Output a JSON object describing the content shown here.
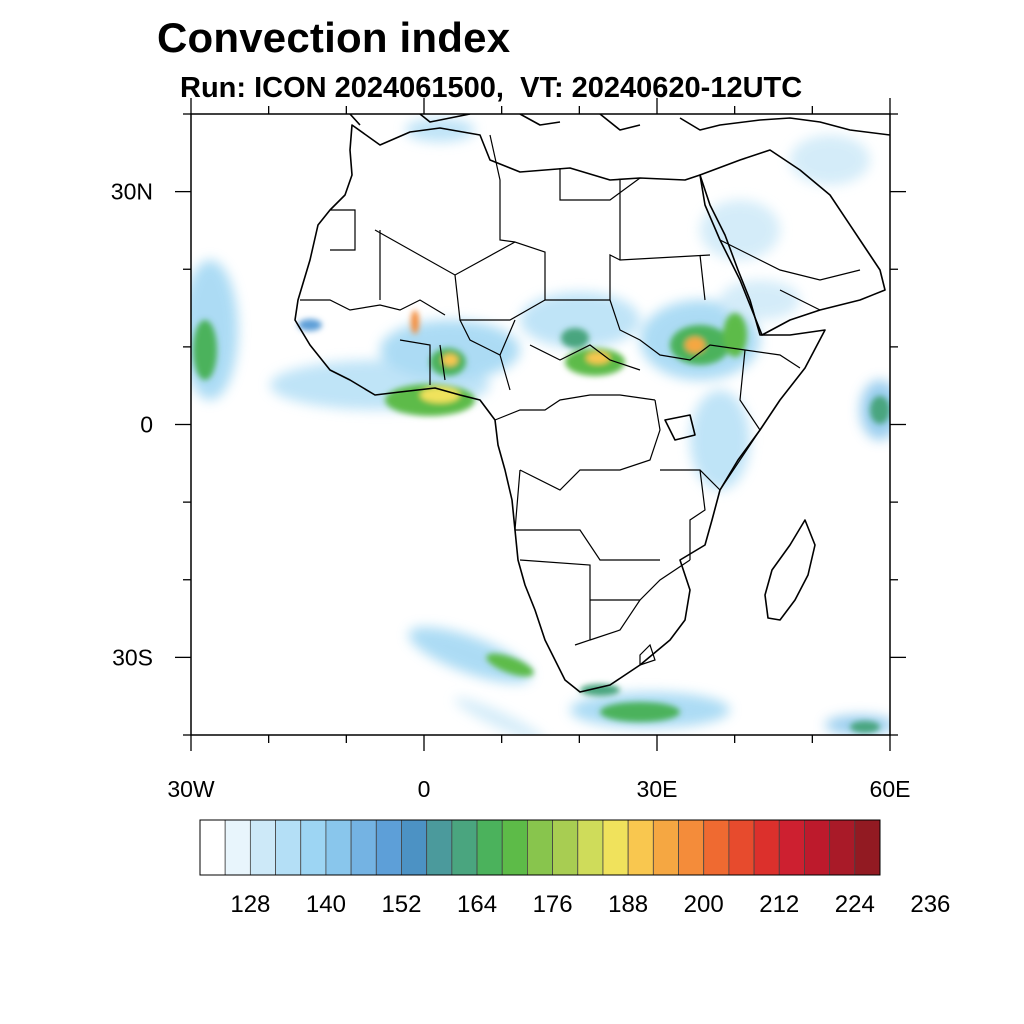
{
  "header": {
    "title": "Convection index",
    "subtitle": "Run: ICON 2024061500,  VT: 20240620-12UTC"
  },
  "map": {
    "region": "Africa",
    "lon_range": [
      -30,
      60
    ],
    "lat_range": [
      -40,
      40
    ],
    "lat_ticks": [
      {
        "value": 30,
        "label": "30N"
      },
      {
        "value": 0,
        "label": "0"
      },
      {
        "value": -30,
        "label": "30S"
      }
    ],
    "lon_ticks": [
      {
        "value": -30,
        "label": "30W"
      },
      {
        "value": 0,
        "label": "0"
      },
      {
        "value": 30,
        "label": "30E"
      },
      {
        "value": 60,
        "label": "60E"
      }
    ]
  },
  "colorbar": {
    "colors": [
      "#ffffff",
      "#e8f5fc",
      "#cde9f8",
      "#b4dff6",
      "#9dd5f3",
      "#89c6ec",
      "#74b3e3",
      "#5d9fd8",
      "#4c92c4",
      "#4b9a9c",
      "#4aa57f",
      "#4bb25c",
      "#5dbb48",
      "#88c54d",
      "#a8cd52",
      "#cfdc5a",
      "#f0e25c",
      "#f9c74f",
      "#f5a742",
      "#f48c3a",
      "#ef6a31",
      "#e74b2d",
      "#dc302c",
      "#cd2030",
      "#bd1a2c",
      "#a91a28",
      "#921a22"
    ],
    "labels": [
      "128",
      "140",
      "152",
      "164",
      "176",
      "188",
      "200",
      "212",
      "224",
      "236"
    ]
  }
}
